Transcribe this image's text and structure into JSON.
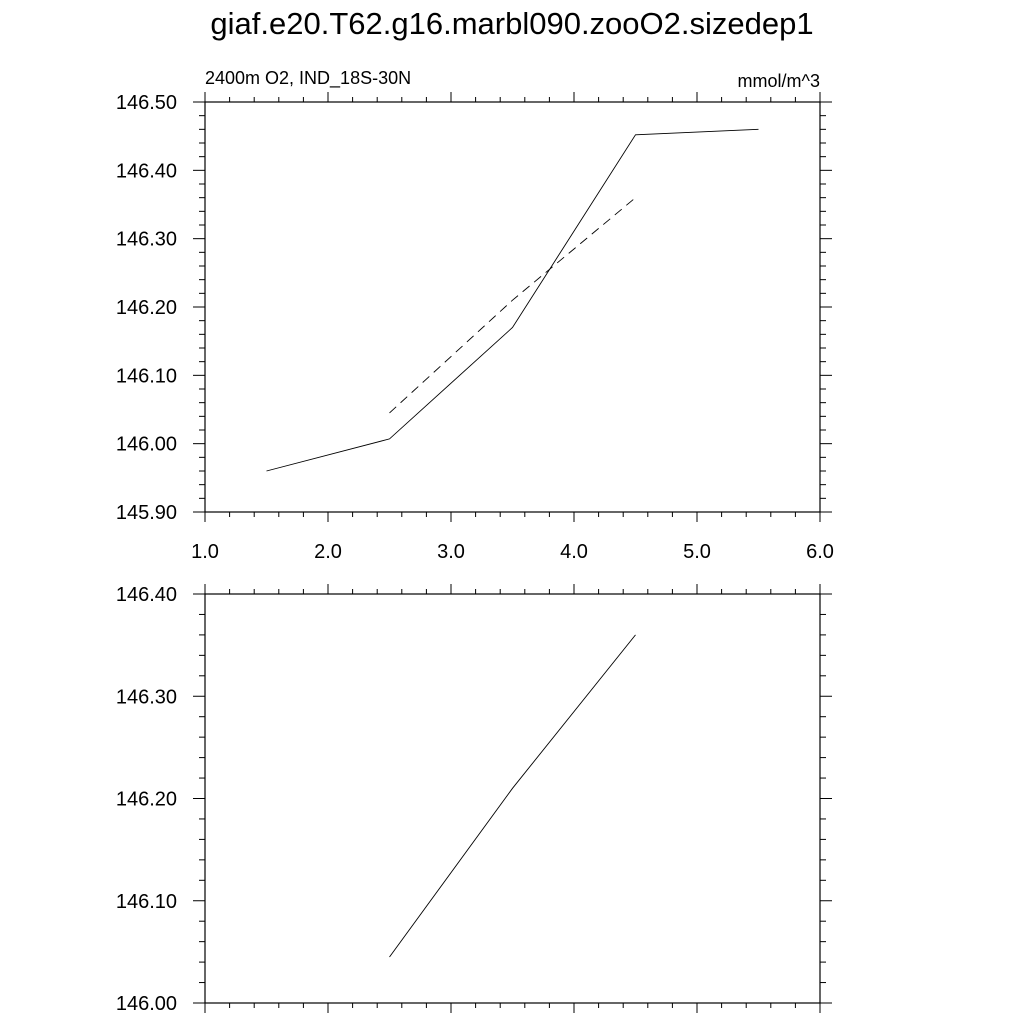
{
  "title": "giaf.e20.T62.g16.marbl090.zooO2.sizedep1",
  "chart_data": [
    {
      "type": "line",
      "left_label": "2400m O2, IND_18S-30N",
      "right_label": "mmol/m^3",
      "xlim": [
        1.0,
        6.0
      ],
      "ylim": [
        145.9,
        146.5
      ],
      "xticks": [
        1.0,
        2.0,
        3.0,
        4.0,
        5.0,
        6.0
      ],
      "xtick_labels": [
        "1.0",
        "2.0",
        "3.0",
        "4.0",
        "5.0",
        "6.0"
      ],
      "yticks": [
        145.9,
        146.0,
        146.1,
        146.2,
        146.3,
        146.4,
        146.5
      ],
      "ytick_labels": [
        "145.90",
        "146.00",
        "146.10",
        "146.20",
        "146.30",
        "146.40",
        "146.50"
      ],
      "series": [
        {
          "style": "solid",
          "x": [
            1.5,
            2.5,
            3.5,
            4.5,
            5.5
          ],
          "y": [
            145.96,
            146.007,
            146.17,
            146.452,
            146.46
          ]
        },
        {
          "style": "dashed",
          "x": [
            2.5,
            3.5,
            4.5
          ],
          "y": [
            146.045,
            146.21,
            146.36
          ]
        }
      ]
    },
    {
      "type": "line",
      "xlim": [
        1.0,
        6.0
      ],
      "ylim": [
        146.0,
        146.4
      ],
      "xticks": [
        1.0,
        2.0,
        3.0,
        4.0,
        5.0,
        6.0
      ],
      "yticks": [
        146.0,
        146.1,
        146.2,
        146.3,
        146.4
      ],
      "ytick_labels": [
        "146.00",
        "146.10",
        "146.20",
        "146.30",
        "146.40"
      ],
      "series": [
        {
          "style": "solid",
          "x": [
            2.5,
            3.5,
            4.5
          ],
          "y": [
            146.045,
            146.21,
            146.36
          ]
        }
      ]
    }
  ]
}
